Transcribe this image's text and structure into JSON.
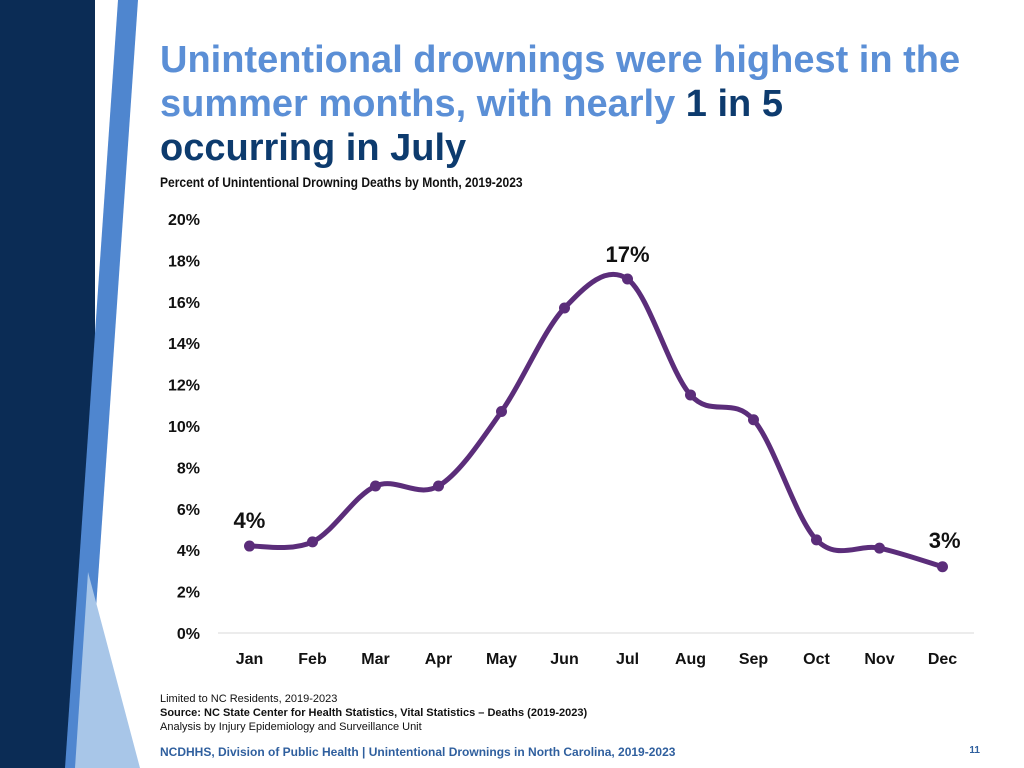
{
  "slide": {
    "title_part1": "Unintentional drownings were highest in the summer months, with nearly",
    "title_highlight": "1 in 5",
    "title_part2": "occurring in July",
    "note_residents": "Limited to NC Residents, 2019-2023",
    "note_source": "Source: NC State Center for Health Statistics, Vital Statistics – Deaths (2019-2023)",
    "note_analysis": "Analysis by Injury Epidemiology and Surveillance Unit",
    "footer_text": "NCDHHS, Division of Public Health | Unintentional Drownings in North Carolina, 2019-2023",
    "page_number": "11"
  },
  "colors": {
    "title_light": "#5b8fd6",
    "title_dark": "#0d3b6e",
    "line": "#5b2d7a",
    "deco_navy": "#0b2c55",
    "deco_blue": "#4f86cf",
    "deco_light": "#a8c6e8"
  },
  "chart_data": {
    "type": "line",
    "title": "Percent of Unintentional Drowning Deaths by Month, 2019-2023",
    "categories": [
      "Jan",
      "Feb",
      "Mar",
      "Apr",
      "May",
      "Jun",
      "Jul",
      "Aug",
      "Sep",
      "Oct",
      "Nov",
      "Dec"
    ],
    "values": [
      4.2,
      4.4,
      7.1,
      7.1,
      10.7,
      15.7,
      17.1,
      11.5,
      10.3,
      4.5,
      4.1,
      3.2
    ],
    "yticks": [
      0,
      2,
      4,
      6,
      8,
      10,
      12,
      14,
      16,
      18,
      20
    ],
    "ytick_labels": [
      "0%",
      "2%",
      "4%",
      "6%",
      "8%",
      "10%",
      "12%",
      "14%",
      "16%",
      "18%",
      "20%"
    ],
    "ylim": [
      0,
      20
    ],
    "xlabel": "",
    "ylabel": "",
    "grid": false,
    "legend": "none",
    "data_labels": [
      {
        "category": "Jan",
        "text": "4%"
      },
      {
        "category": "Jul",
        "text": "17%"
      },
      {
        "category": "Dec",
        "text": "3%"
      }
    ]
  }
}
